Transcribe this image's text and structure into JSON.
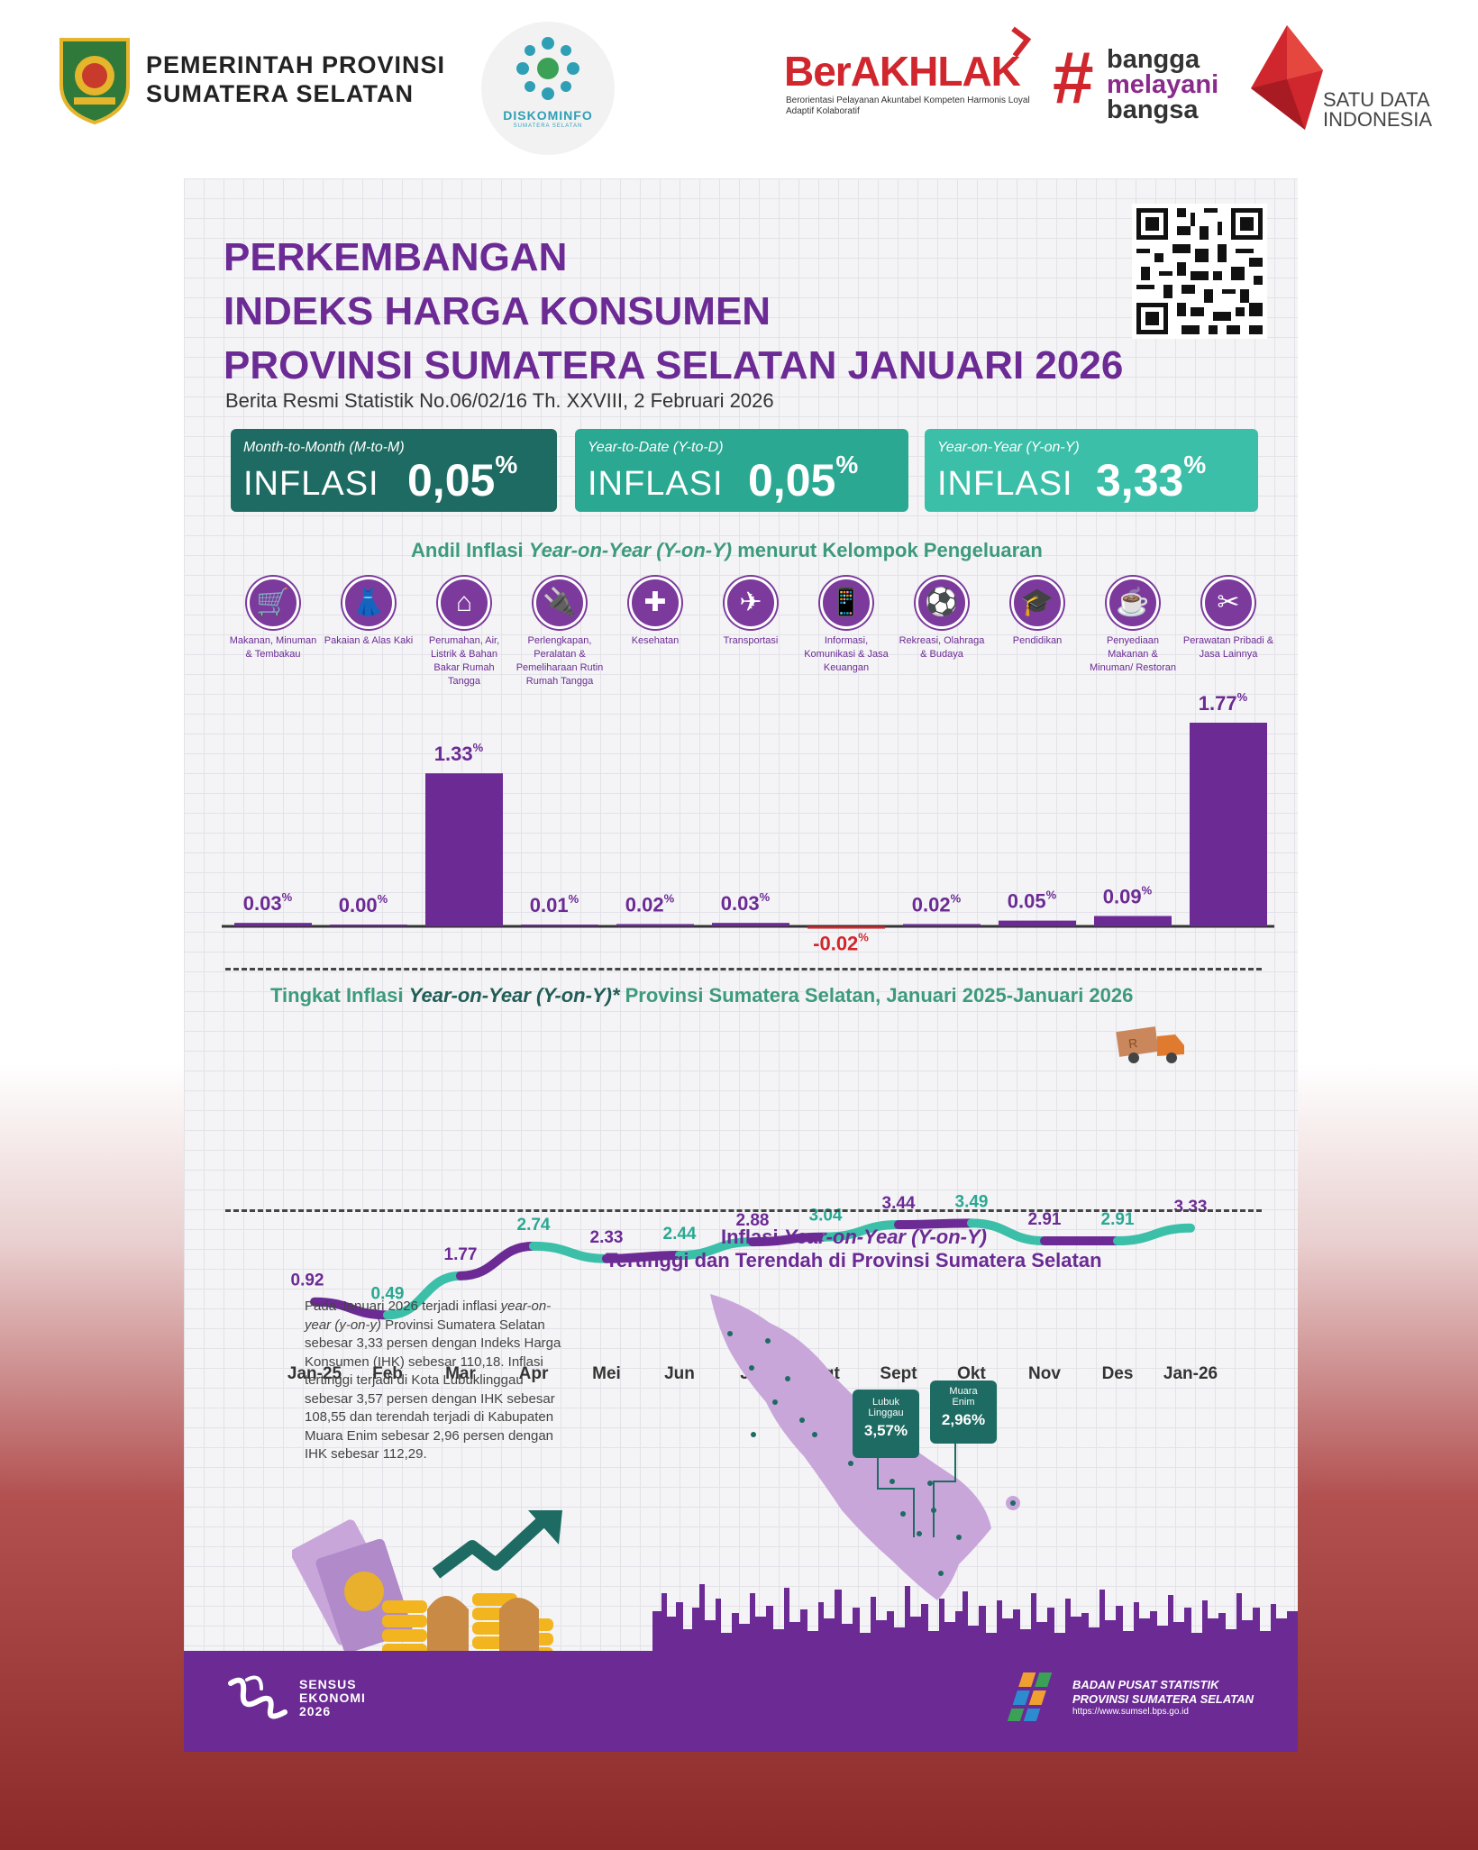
{
  "header": {
    "prov_line1": "PEMERINTAH PROVINSI",
    "prov_line2": "SUMATERA SELATAN",
    "diskominfo": "DISKOMINFO",
    "diskominfo_sub": "SUMATERA SELATAN",
    "berakhlak": "BerAKHLAK",
    "berakhlak_sub": "Berorientasi Pelayanan Akuntabel Kompeten Harmonis Loyal Adaptif Kolaboratif",
    "hash": "#",
    "bangga1": "bangga",
    "bangga2": "melayani",
    "bangga3": "bangsa",
    "sdi1": "SATU DATA",
    "sdi2": "INDONESIA"
  },
  "title": {
    "line1": "PERKEMBANGAN",
    "line2": "INDEKS HARGA KONSUMEN",
    "line3": "PROVINSI SUMATERA SELATAN JANUARI 2026",
    "subtitle": "Berita Resmi Statistik No.06/02/16 Th. XXVIII, 2 Februari 2026"
  },
  "inflation": {
    "mtm": {
      "label": "Month-to-Month (M-to-M)",
      "word": "INFLASI",
      "value": "0,05",
      "pct": "%",
      "color": "#1d6b62"
    },
    "ytd": {
      "label": "Year-to-Date (Y-to-D)",
      "word": "INFLASI",
      "value": "0,05",
      "pct": "%",
      "color": "#2aa892"
    },
    "yoy": {
      "label": "Year-on-Year (Y-on-Y)",
      "word": "INFLASI",
      "value": "3,33",
      "pct": "%",
      "color": "#3cbfa8"
    }
  },
  "bar_section": {
    "title_a": "Andil Inflasi ",
    "title_b": "Year-on-Year (Y-on-Y)",
    "title_c": " menurut Kelompok Pengeluaran"
  },
  "line_section": {
    "title_a": "Tingkat Inflasi ",
    "title_b": "Year-on-Year (Y-on-Y)*",
    "title_c": " Provinsi Sumatera Selatan, Januari 2025-Januari 2026"
  },
  "map_section": {
    "title_a": "Inflasi ",
    "title_b": "Year-on-Year (Y-on-Y)",
    "title_line2": "Tertinggi dan Terendah di Provinsi Sumatera Selatan",
    "callout1_name1": "Lubuk",
    "callout1_name2": "Linggau",
    "callout1_value": "3,57%",
    "callout2_name1": "Muara",
    "callout2_name2": "Enim",
    "callout2_value": "2,96%",
    "para_a": "Pada Januari 2026 terjadi inflasi ",
    "para_b": "year-on-year (y-on-y)",
    "para_c": " Provinsi Sumatera Selatan sebesar 3,33 persen dengan Indeks Harga Konsumen (IHK) sebesar 110,18. Inflasi tertinggi terjadi di Kota Lubuklinggau sebesar 3,57 persen dengan IHK sebesar 108,55 dan terendah terjadi di Kabupaten Muara Enim sebesar 2,96 persen dengan IHK sebesar 112,29."
  },
  "icons": [
    {
      "glyph": "🛒",
      "label": "Makanan, Minuman & Tembakau"
    },
    {
      "glyph": "👗",
      "label": "Pakaian & Alas Kaki"
    },
    {
      "glyph": "⌂",
      "label": "Perumahan, Air, Listrik & Bahan Bakar Rumah Tangga"
    },
    {
      "glyph": "🔌",
      "label": "Perlengkapan, Peralatan & Pemeliharaan Rutin Rumah Tangga"
    },
    {
      "glyph": "✚",
      "label": "Kesehatan"
    },
    {
      "glyph": "✈",
      "label": "Transportasi"
    },
    {
      "glyph": "📱",
      "label": "Informasi, Komunikasi & Jasa Keuangan"
    },
    {
      "glyph": "⚽",
      "label": "Rekreasi, Olahraga & Budaya"
    },
    {
      "glyph": "🎓",
      "label": "Pendidikan"
    },
    {
      "glyph": "☕",
      "label": "Penyediaan Makanan & Minuman/ Restoran"
    },
    {
      "glyph": "✂",
      "label": "Perawatan Pribadi & Jasa Lainnya"
    }
  ],
  "chart_data": [
    {
      "type": "bar",
      "title": "Andil Inflasi Year-on-Year (Y-on-Y) menurut Kelompok Pengeluaran",
      "categories": [
        "Makanan, Minuman & Tembakau",
        "Pakaian & Alas Kaki",
        "Perumahan, Air, Listrik & Bahan Bakar Rumah Tangga",
        "Perlengkapan, Peralatan & Pemeliharaan Rutin Rumah Tangga",
        "Kesehatan",
        "Transportasi",
        "Informasi, Komunikasi & Jasa Keuangan",
        "Rekreasi, Olahraga & Budaya",
        "Pendidikan",
        "Penyediaan Makanan & Minuman/ Restoran",
        "Perawatan Pribadi & Jasa Lainnya"
      ],
      "values": [
        0.03,
        0.0,
        1.33,
        0.01,
        0.02,
        0.03,
        -0.02,
        0.02,
        0.05,
        0.09,
        1.77
      ],
      "labels": [
        "0.03",
        "0.00",
        "1.33",
        "0.01",
        "0.02",
        "0.03",
        "-0.02",
        "0.02",
        "0.05",
        "0.09",
        "1.77"
      ],
      "unit": "%",
      "bar_color": "#6b2a94",
      "neg_color": "#d0262d"
    },
    {
      "type": "line",
      "title": "Tingkat Inflasi Year-on-Year (Y-on-Y)* Provinsi Sumatera Selatan, Januari 2025-Januari 2026",
      "x": [
        "Jan-25",
        "Feb",
        "Mar",
        "Apr",
        "Mei",
        "Jun",
        "Jul",
        "Agt",
        "Sept",
        "Okt",
        "Nov",
        "Des",
        "Jan-26"
      ],
      "values": [
        0.92,
        0.49,
        1.77,
        2.74,
        2.33,
        2.44,
        2.88,
        3.04,
        3.44,
        3.49,
        2.91,
        2.91,
        3.33
      ],
      "labels": [
        "0.92",
        "0.49",
        "1.77",
        "2.74",
        "2.33",
        "2.44",
        "2.88",
        "3.04",
        "3.44",
        "3.49",
        "2.91",
        "2.91",
        "3.33"
      ],
      "colors": [
        "#6b2a94",
        "#3cbfa8"
      ]
    }
  ],
  "footer": {
    "sensus1": "SENSUS",
    "sensus2": "EKONOMI",
    "sensus3": "2026",
    "bps1": "BADAN PUSAT STATISTIK",
    "bps2": "PROVINSI SUMATERA SELATAN",
    "bps3": "https://www.sumsel.bps.go.id"
  }
}
